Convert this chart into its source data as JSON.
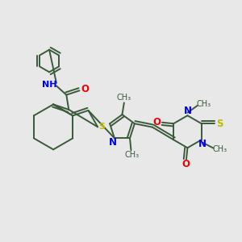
{
  "bg_color": "#e8e8e8",
  "bond_color": "#3a5a3a",
  "bond_width": 1.4,
  "N_color": "#0000ee",
  "O_color": "#ee0000",
  "S_color": "#bbbb00",
  "text_color": "#3a5a3a",
  "figsize": [
    3.0,
    3.0
  ],
  "dpi": 100,
  "xlim": [
    0,
    10
  ],
  "ylim": [
    0,
    10
  ]
}
